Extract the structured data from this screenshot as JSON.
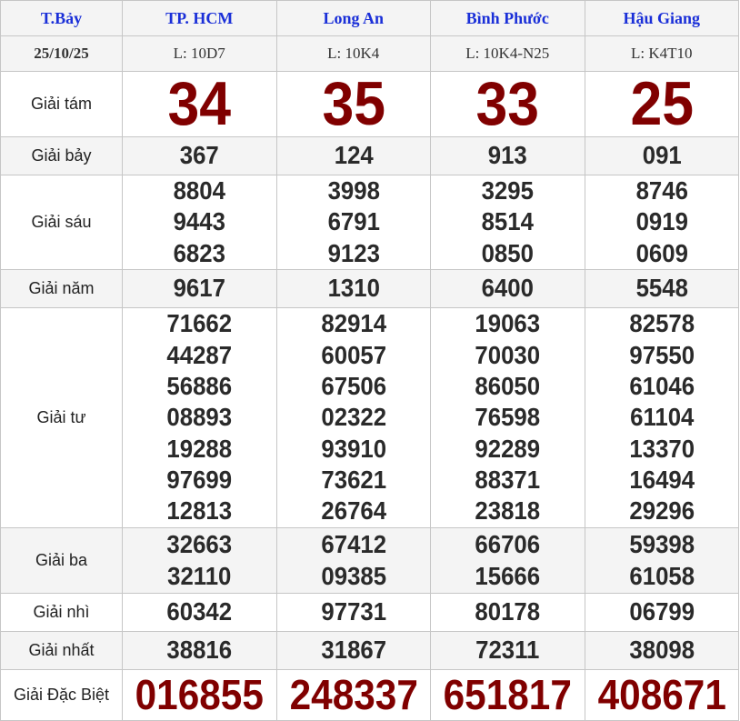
{
  "header": {
    "day": "T.Bảy",
    "provinces": [
      "TP. HCM",
      "Long An",
      "Bình Phước",
      "Hậu Giang"
    ]
  },
  "date_row": {
    "date": "25/10/25",
    "codes": [
      "L: 10D7",
      "L: 10K4",
      "L: 10K4-N25",
      "L: K4T10"
    ]
  },
  "prizes": [
    {
      "label": "Giải tám",
      "cls": "g8",
      "bg": "white",
      "values": [
        [
          "34"
        ],
        [
          "35"
        ],
        [
          "33"
        ],
        [
          "25"
        ]
      ]
    },
    {
      "label": "Giải bảy",
      "cls": "g7",
      "bg": "gray",
      "values": [
        [
          "367"
        ],
        [
          "124"
        ],
        [
          "913"
        ],
        [
          "091"
        ]
      ]
    },
    {
      "label": "Giải sáu",
      "cls": "g6",
      "bg": "white",
      "values": [
        [
          "8804",
          "9443",
          "6823"
        ],
        [
          "3998",
          "6791",
          "9123"
        ],
        [
          "3295",
          "8514",
          "0850"
        ],
        [
          "8746",
          "0919",
          "0609"
        ]
      ]
    },
    {
      "label": "Giải năm",
      "cls": "g5",
      "bg": "gray",
      "values": [
        [
          "9617"
        ],
        [
          "1310"
        ],
        [
          "6400"
        ],
        [
          "5548"
        ]
      ]
    },
    {
      "label": "Giải tư",
      "cls": "g4",
      "bg": "white",
      "values": [
        [
          "71662",
          "44287",
          "56886",
          "08893",
          "19288",
          "97699",
          "12813"
        ],
        [
          "82914",
          "60057",
          "67506",
          "02322",
          "93910",
          "73621",
          "26764"
        ],
        [
          "19063",
          "70030",
          "86050",
          "76598",
          "92289",
          "88371",
          "23818"
        ],
        [
          "82578",
          "97550",
          "61046",
          "61104",
          "13370",
          "16494",
          "29296"
        ]
      ]
    },
    {
      "label": "Giải ba",
      "cls": "g3",
      "bg": "gray",
      "values": [
        [
          "32663",
          "32110"
        ],
        [
          "67412",
          "09385"
        ],
        [
          "66706",
          "15666"
        ],
        [
          "59398",
          "61058"
        ]
      ]
    },
    {
      "label": "Giải nhì",
      "cls": "g2",
      "bg": "white",
      "values": [
        [
          "60342"
        ],
        [
          "97731"
        ],
        [
          "80178"
        ],
        [
          "06799"
        ]
      ]
    },
    {
      "label": "Giải nhất",
      "cls": "g1",
      "bg": "gray",
      "values": [
        [
          "38816"
        ],
        [
          "31867"
        ],
        [
          "72311"
        ],
        [
          "38098"
        ]
      ]
    },
    {
      "label": "Giải Đặc Biệt",
      "cls": "db",
      "bg": "white",
      "values": [
        [
          "016855"
        ],
        [
          "248337"
        ],
        [
          "651817"
        ],
        [
          "408671"
        ]
      ]
    }
  ],
  "colors": {
    "header_text": "#1a2fd8",
    "highlight_number": "#800000",
    "number": "#2a2a2a",
    "alt_row": "#f4f4f4"
  }
}
